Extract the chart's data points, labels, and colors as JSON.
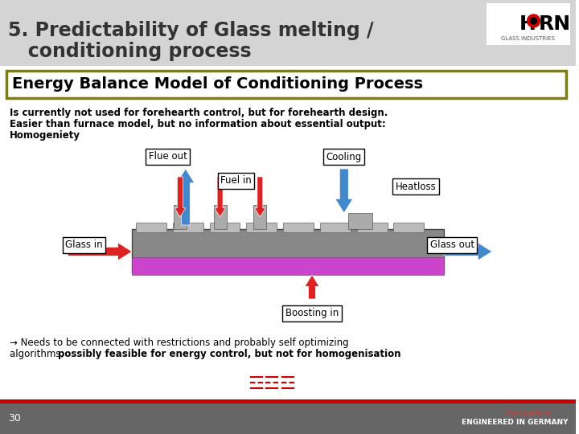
{
  "title_line1": "5. Predictability of Glass melting /",
  "title_line2": "   conditioning process",
  "subtitle": "Energy Balance Model of Conditioning Process",
  "body_text_normal": "Is currently not used for forehearth control, but for forehearth design.\nEasier than furnace model, but no information about essential output:\nHomogeniety",
  "footer_text_normal": "→ Needs to be connected with restrictions and probably self optimizing\nalgorithms, ",
  "footer_text_bold": "possibly feasible for energy control, but not for homogenisation",
  "labels": {
    "flue_out": "Flue out",
    "cooling": "Cooling",
    "fuel_in": "Fuel in",
    "heatloss": "Heatloss",
    "glass_out": "Glass out",
    "glass_in": "Glass in",
    "boosting_in": "Boosting in"
  },
  "bg_color": "#d4d4d4",
  "title_bg": "#c8c8c8",
  "white": "#ffffff",
  "olive_border": "#808000",
  "red_dark": "#8B0000",
  "red": "#cc0000",
  "blue_arrow": "#4488cc",
  "page_num": "30",
  "footer_bg": "#666666"
}
